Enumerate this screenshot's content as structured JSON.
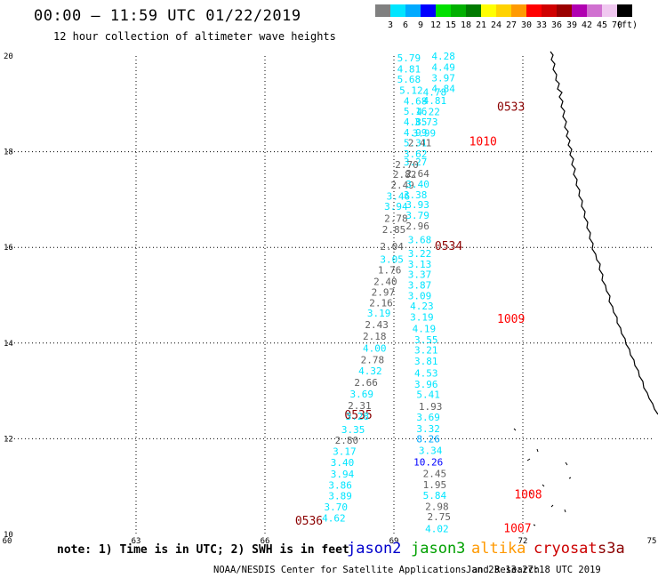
{
  "header": {
    "title": "00:00 – 11:59 UTC 01/22/2019",
    "subtitle": "12 hour collection of altimeter wave heights"
  },
  "legend": {
    "unit": "(ft)",
    "swatches": [
      {
        "label": "3",
        "color": "#808080"
      },
      {
        "label": "6",
        "color": "#00e5ff"
      },
      {
        "label": "9",
        "color": "#00aaff"
      },
      {
        "label": "12",
        "color": "#0000ff"
      },
      {
        "label": "15",
        "color": "#00e000"
      },
      {
        "label": "18",
        "color": "#00b000"
      },
      {
        "label": "21",
        "color": "#007a00"
      },
      {
        "label": "24",
        "color": "#ffff00"
      },
      {
        "label": "27",
        "color": "#ffd200"
      },
      {
        "label": "30",
        "color": "#ff9a00"
      },
      {
        "label": "33",
        "color": "#ff0000"
      },
      {
        "label": "36",
        "color": "#d00000"
      },
      {
        "label": "39",
        "color": "#9a0000"
      },
      {
        "label": "42",
        "color": "#b000b0"
      },
      {
        "label": "45",
        "color": "#d070d0"
      },
      {
        "label": "70",
        "color": "#f0c8f0"
      },
      {
        "label": "",
        "color": "#000000"
      }
    ]
  },
  "map": {
    "lon_range": [
      60,
      75
    ],
    "lat_range": [
      10,
      20
    ],
    "lon_ticks": [
      "60",
      "63",
      "66",
      "69",
      "72",
      "75"
    ],
    "lat_ticks": [
      "10",
      "12",
      "14",
      "16",
      "18",
      "20"
    ],
    "passes": [
      {
        "label": "0533",
        "lon": 71.4,
        "lat": 18.86,
        "color": "#8b0000"
      },
      {
        "label": "1010",
        "lon": 70.75,
        "lat": 18.13,
        "color": "#ff0000"
      },
      {
        "label": "0534",
        "lon": 69.95,
        "lat": 15.95,
        "color": "#8b0000"
      },
      {
        "label": "1009",
        "lon": 71.4,
        "lat": 14.42,
        "color": "#ff0000"
      },
      {
        "label": "0535",
        "lon": 67.85,
        "lat": 12.42,
        "color": "#8b0000"
      },
      {
        "label": "1008",
        "lon": 71.8,
        "lat": 10.75,
        "color": "#ff0000"
      },
      {
        "label": "0536",
        "lon": 66.7,
        "lat": 10.2,
        "color": "#8b0000"
      },
      {
        "label": "1007",
        "lon": 71.55,
        "lat": 10.05,
        "color": "#ff0000"
      }
    ],
    "swh_observations": [
      {
        "v": "5.79",
        "lon": 69.35,
        "lat": 19.89,
        "c": "#00e5ff"
      },
      {
        "v": "4.28",
        "lon": 70.15,
        "lat": 19.93,
        "c": "#00e5ff"
      },
      {
        "v": "4.81",
        "lon": 69.35,
        "lat": 19.66,
        "c": "#00e5ff"
      },
      {
        "v": "4.49",
        "lon": 70.15,
        "lat": 19.69,
        "c": "#00e5ff"
      },
      {
        "v": "5.68",
        "lon": 69.35,
        "lat": 19.44,
        "c": "#00e5ff"
      },
      {
        "v": "3.97",
        "lon": 70.15,
        "lat": 19.47,
        "c": "#00e5ff"
      },
      {
        "v": "5.12",
        "lon": 69.4,
        "lat": 19.21,
        "c": "#00e5ff"
      },
      {
        "v": "4.84",
        "lon": 70.15,
        "lat": 19.25,
        "c": "#00e5ff"
      },
      {
        "v": "4.78",
        "lon": 69.95,
        "lat": 19.17,
        "c": "#00e5ff"
      },
      {
        "v": "4.68",
        "lon": 69.5,
        "lat": 18.99,
        "c": "#00e5ff"
      },
      {
        "v": "4.81",
        "lon": 69.95,
        "lat": 19.0,
        "c": "#00e5ff"
      },
      {
        "v": "5.16",
        "lon": 69.5,
        "lat": 18.77,
        "c": "#00e5ff"
      },
      {
        "v": "4.22",
        "lon": 69.8,
        "lat": 18.76,
        "c": "#00e5ff"
      },
      {
        "v": "4.85",
        "lon": 69.5,
        "lat": 18.55,
        "c": "#00e5ff"
      },
      {
        "v": "3.73",
        "lon": 69.75,
        "lat": 18.55,
        "c": "#00e5ff"
      },
      {
        "v": "4.99",
        "lon": 69.5,
        "lat": 18.33,
        "c": "#00e5ff"
      },
      {
        "v": "3.99",
        "lon": 69.7,
        "lat": 18.32,
        "c": "#00e5ff"
      },
      {
        "v": "5.31",
        "lon": 69.5,
        "lat": 18.11,
        "c": "#00e5ff"
      },
      {
        "v": "2.41",
        "lon": 69.6,
        "lat": 18.11,
        "c": "#606060"
      },
      {
        "v": "3.62",
        "lon": 69.5,
        "lat": 17.88,
        "c": "#00e5ff"
      },
      {
        "v": "3.27",
        "lon": 69.5,
        "lat": 17.71,
        "c": "#00e5ff"
      },
      {
        "v": "2.70",
        "lon": 69.3,
        "lat": 17.66,
        "c": "#606060"
      },
      {
        "v": "2.82",
        "lon": 69.25,
        "lat": 17.45,
        "c": "#606060"
      },
      {
        "v": "2.64",
        "lon": 69.55,
        "lat": 17.47,
        "c": "#606060"
      },
      {
        "v": "2.49",
        "lon": 69.2,
        "lat": 17.23,
        "c": "#606060"
      },
      {
        "v": "3.40",
        "lon": 69.55,
        "lat": 17.25,
        "c": "#00e5ff"
      },
      {
        "v": "3.46",
        "lon": 69.1,
        "lat": 17.0,
        "c": "#00e5ff"
      },
      {
        "v": "3.38",
        "lon": 69.5,
        "lat": 17.03,
        "c": "#00e5ff"
      },
      {
        "v": "3.94",
        "lon": 69.05,
        "lat": 16.78,
        "c": "#00e5ff"
      },
      {
        "v": "3.93",
        "lon": 69.55,
        "lat": 16.82,
        "c": "#00e5ff"
      },
      {
        "v": "3.79",
        "lon": 69.55,
        "lat": 16.6,
        "c": "#00e5ff"
      },
      {
        "v": "2.78",
        "lon": 69.05,
        "lat": 16.53,
        "c": "#606060"
      },
      {
        "v": "2.96",
        "lon": 69.55,
        "lat": 16.38,
        "c": "#606060"
      },
      {
        "v": "2.85",
        "lon": 69.0,
        "lat": 16.3,
        "c": "#606060"
      },
      {
        "v": "3.68",
        "lon": 69.6,
        "lat": 16.09,
        "c": "#00e5ff"
      },
      {
        "v": "2.04",
        "lon": 68.95,
        "lat": 15.95,
        "c": "#606060"
      },
      {
        "v": "3.22",
        "lon": 69.6,
        "lat": 15.8,
        "c": "#00e5ff"
      },
      {
        "v": "3.05",
        "lon": 68.95,
        "lat": 15.68,
        "c": "#00e5ff"
      },
      {
        "v": "3.13",
        "lon": 69.6,
        "lat": 15.58,
        "c": "#00e5ff"
      },
      {
        "v": "1.76",
        "lon": 68.9,
        "lat": 15.46,
        "c": "#606060"
      },
      {
        "v": "3.37",
        "lon": 69.6,
        "lat": 15.36,
        "c": "#00e5ff"
      },
      {
        "v": "2.40",
        "lon": 68.8,
        "lat": 15.21,
        "c": "#606060"
      },
      {
        "v": "3.87",
        "lon": 69.6,
        "lat": 15.14,
        "c": "#00e5ff"
      },
      {
        "v": "2.97",
        "lon": 68.75,
        "lat": 14.99,
        "c": "#606060"
      },
      {
        "v": "3.09",
        "lon": 69.6,
        "lat": 14.92,
        "c": "#00e5ff"
      },
      {
        "v": "2.16",
        "lon": 68.7,
        "lat": 14.77,
        "c": "#606060"
      },
      {
        "v": "4.23",
        "lon": 69.65,
        "lat": 14.7,
        "c": "#00e5ff"
      },
      {
        "v": "3.19",
        "lon": 68.65,
        "lat": 14.55,
        "c": "#00e5ff"
      },
      {
        "v": "3.19",
        "lon": 69.65,
        "lat": 14.47,
        "c": "#00e5ff"
      },
      {
        "v": "2.43",
        "lon": 68.6,
        "lat": 14.31,
        "c": "#606060"
      },
      {
        "v": "4.19",
        "lon": 69.7,
        "lat": 14.23,
        "c": "#00e5ff"
      },
      {
        "v": "2.18",
        "lon": 68.55,
        "lat": 14.07,
        "c": "#606060"
      },
      {
        "v": "3.55",
        "lon": 69.75,
        "lat": 14.0,
        "c": "#00e5ff"
      },
      {
        "v": "4.00",
        "lon": 68.55,
        "lat": 13.82,
        "c": "#00e5ff"
      },
      {
        "v": "3.21",
        "lon": 69.75,
        "lat": 13.78,
        "c": "#00e5ff"
      },
      {
        "v": "2.78",
        "lon": 68.5,
        "lat": 13.58,
        "c": "#606060"
      },
      {
        "v": "3.81",
        "lon": 69.75,
        "lat": 13.55,
        "c": "#00e5ff"
      },
      {
        "v": "4.32",
        "lon": 68.45,
        "lat": 13.35,
        "c": "#00e5ff"
      },
      {
        "v": "4.53",
        "lon": 69.75,
        "lat": 13.3,
        "c": "#00e5ff"
      },
      {
        "v": "2.66",
        "lon": 68.35,
        "lat": 13.1,
        "c": "#606060"
      },
      {
        "v": "3.96",
        "lon": 69.75,
        "lat": 13.07,
        "c": "#00e5ff"
      },
      {
        "v": "3.69",
        "lon": 68.25,
        "lat": 12.86,
        "c": "#00e5ff"
      },
      {
        "v": "5.41",
        "lon": 69.8,
        "lat": 12.85,
        "c": "#00e5ff"
      },
      {
        "v": "2.31",
        "lon": 68.2,
        "lat": 12.62,
        "c": "#606060"
      },
      {
        "v": "1.93",
        "lon": 69.85,
        "lat": 12.6,
        "c": "#606060"
      },
      {
        "v": "3.28",
        "lon": 68.15,
        "lat": 12.4,
        "c": "#00e5ff"
      },
      {
        "v": "3.69",
        "lon": 69.8,
        "lat": 12.38,
        "c": "#00e5ff"
      },
      {
        "v": "3.35",
        "lon": 68.05,
        "lat": 12.12,
        "c": "#00e5ff"
      },
      {
        "v": "3.32",
        "lon": 69.8,
        "lat": 12.14,
        "c": "#00e5ff"
      },
      {
        "v": "2.80",
        "lon": 67.9,
        "lat": 11.9,
        "c": "#606060"
      },
      {
        "v": "8.26",
        "lon": 69.8,
        "lat": 11.92,
        "c": "#00aaff"
      },
      {
        "v": "3.17",
        "lon": 67.85,
        "lat": 11.66,
        "c": "#00e5ff"
      },
      {
        "v": "3.34",
        "lon": 69.85,
        "lat": 11.68,
        "c": "#00e5ff"
      },
      {
        "v": "3.40",
        "lon": 67.8,
        "lat": 11.43,
        "c": "#00e5ff"
      },
      {
        "v": "10.26",
        "lon": 69.8,
        "lat": 11.44,
        "c": "#0000ff"
      },
      {
        "v": "3.94",
        "lon": 67.8,
        "lat": 11.19,
        "c": "#00e5ff"
      },
      {
        "v": "2.45",
        "lon": 69.95,
        "lat": 11.2,
        "c": "#606060"
      },
      {
        "v": "3.86",
        "lon": 67.75,
        "lat": 10.96,
        "c": "#00e5ff"
      },
      {
        "v": "1.95",
        "lon": 69.95,
        "lat": 10.97,
        "c": "#606060"
      },
      {
        "v": "3.89",
        "lon": 67.75,
        "lat": 10.73,
        "c": "#00e5ff"
      },
      {
        "v": "5.84",
        "lon": 69.95,
        "lat": 10.74,
        "c": "#00e5ff"
      },
      {
        "v": "3.70",
        "lon": 67.65,
        "lat": 10.5,
        "c": "#00e5ff"
      },
      {
        "v": "2.98",
        "lon": 70.0,
        "lat": 10.51,
        "c": "#606060"
      },
      {
        "v": "4.62",
        "lon": 67.6,
        "lat": 10.27,
        "c": "#00e5ff"
      },
      {
        "v": "2.75",
        "lon": 70.05,
        "lat": 10.3,
        "c": "#606060"
      },
      {
        "v": "4.02",
        "lon": 70.0,
        "lat": 10.05,
        "c": "#00e5ff"
      }
    ]
  },
  "footer": {
    "note": "note: 1) Time is in UTC; 2) SWH is in feet",
    "satellites": [
      {
        "name": "jason2",
        "color": "#0000cc"
      },
      {
        "name": "jason3",
        "color": "#00a000"
      },
      {
        "name": "altika",
        "color": "#ff9900"
      },
      {
        "name": "cryosat",
        "color": "#cc0000"
      },
      {
        "name": "s3a",
        "color": "#8b0000"
      }
    ],
    "credit": "NOAA/NESDIS Center for Satellite Applications and Research",
    "timestamp": "Jan 23 13:27:18 UTC 2019"
  }
}
